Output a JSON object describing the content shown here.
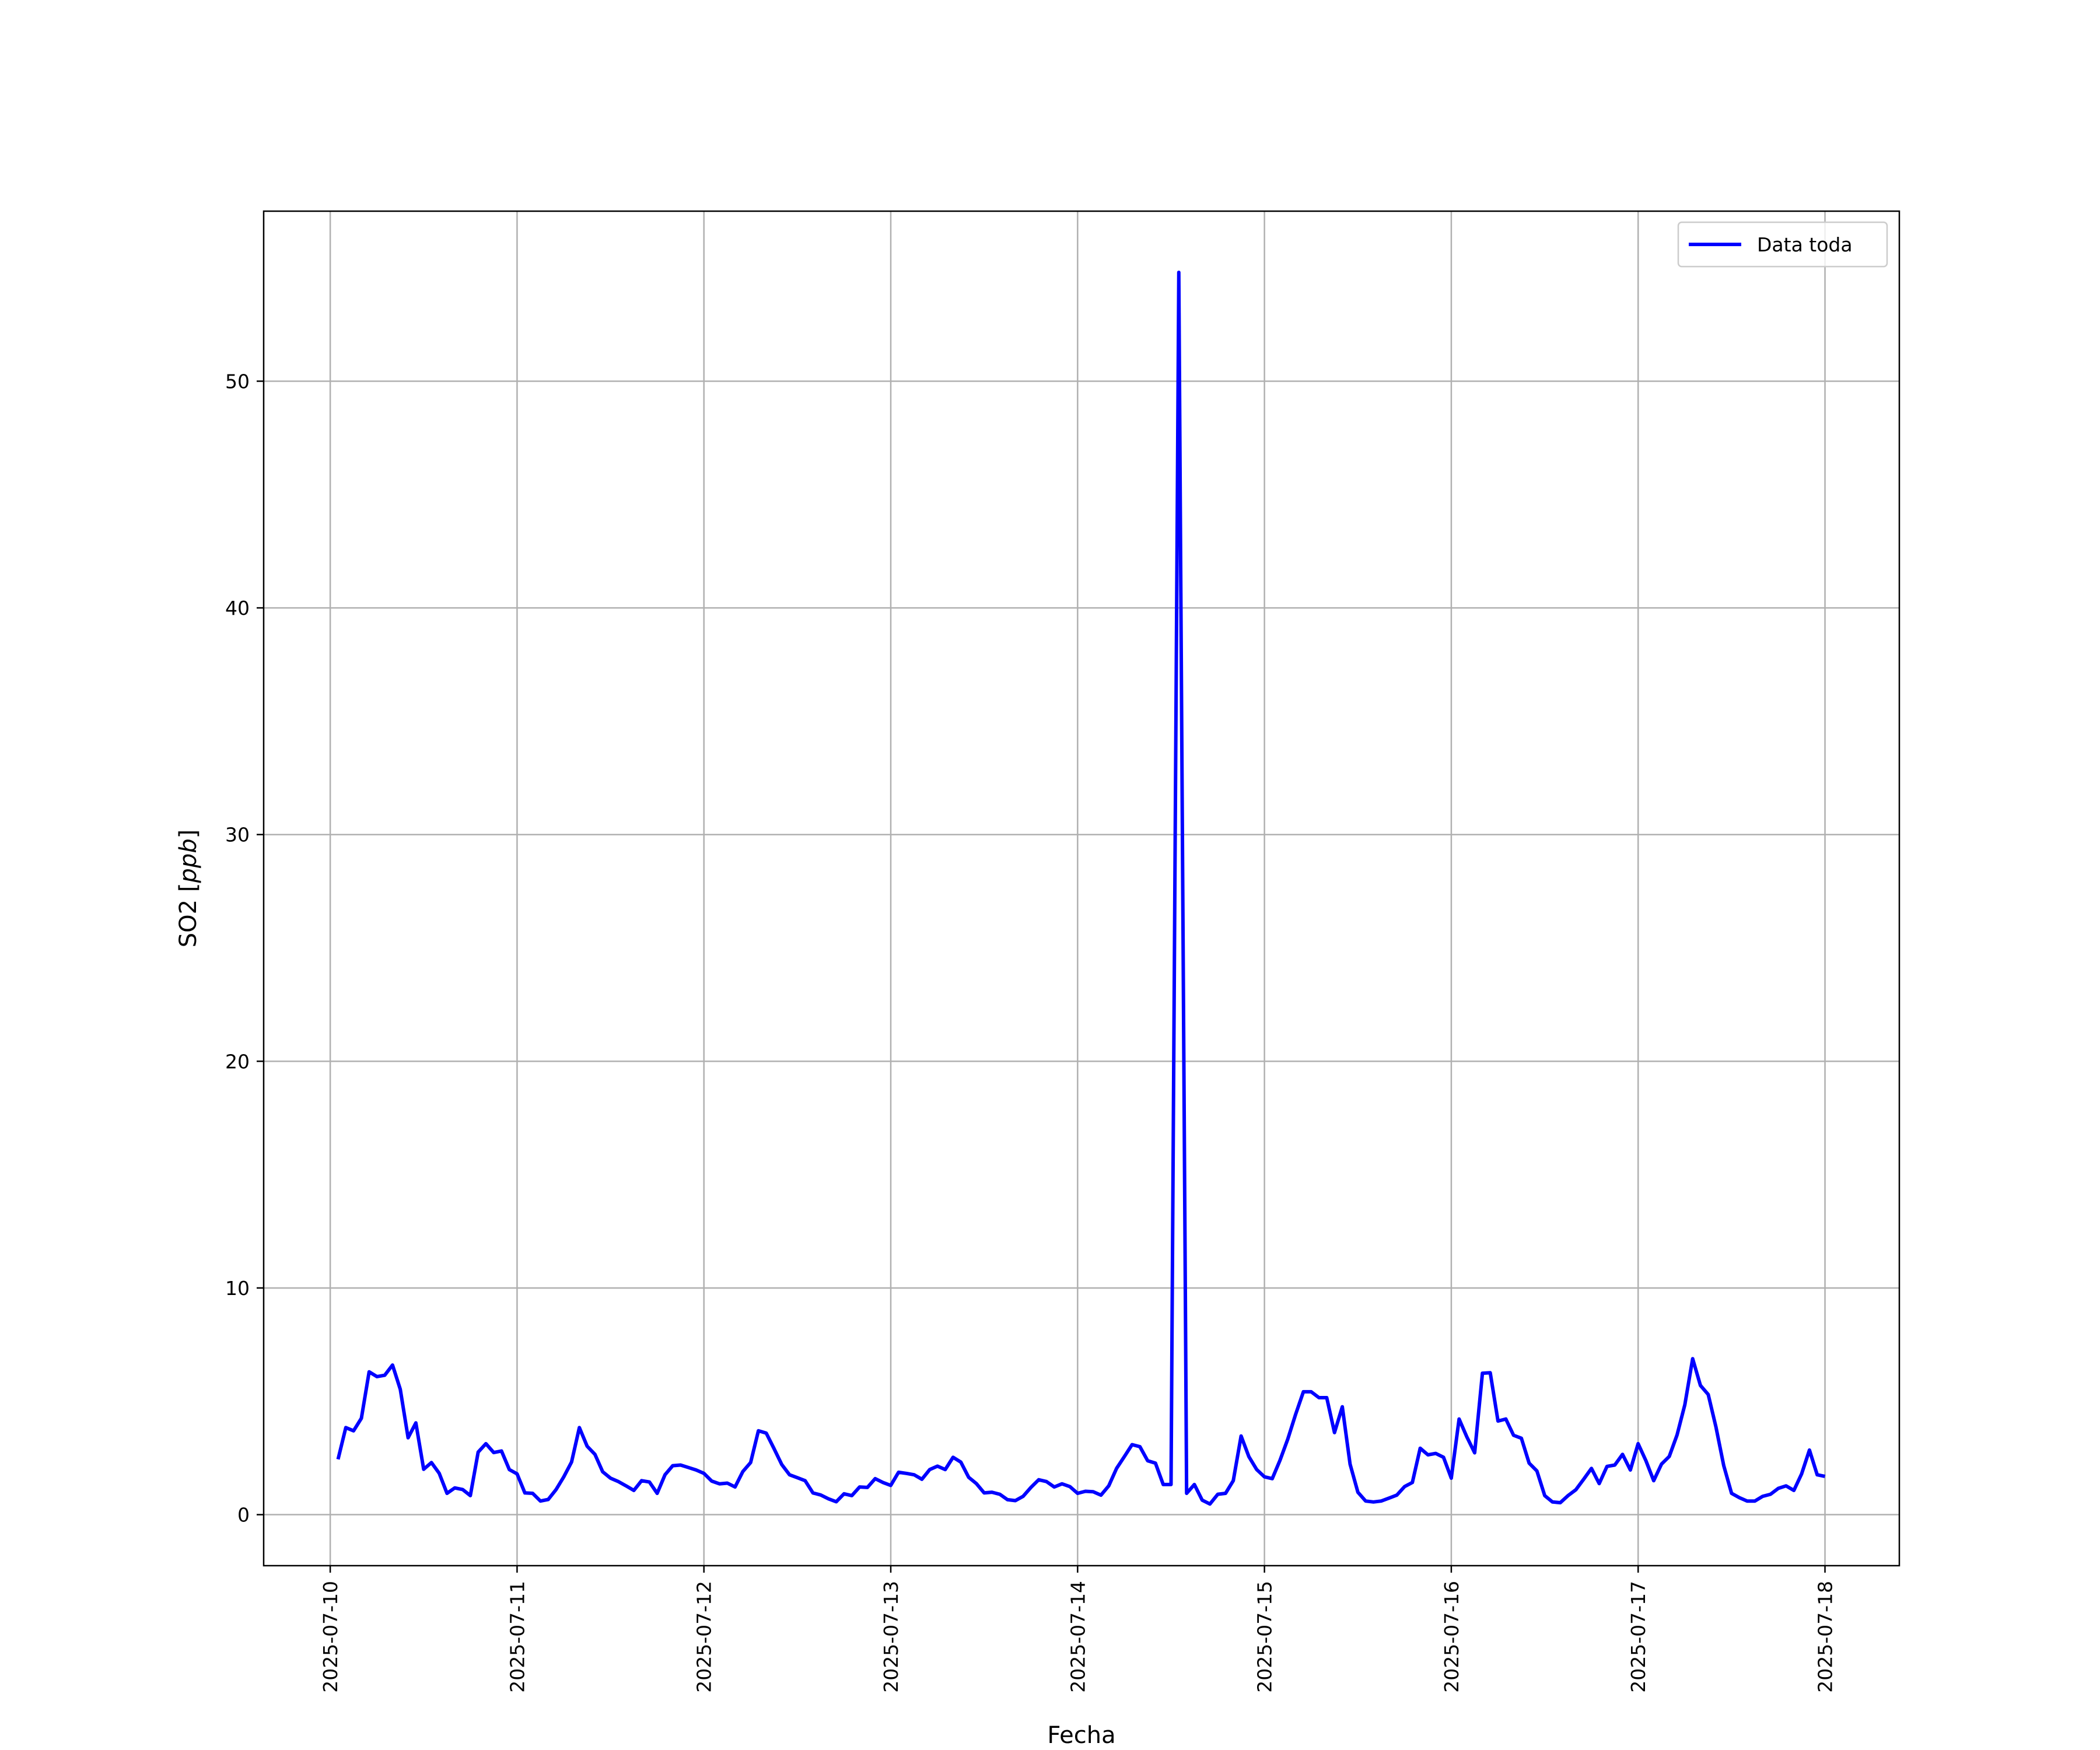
{
  "chart_data": {
    "type": "line",
    "title": "",
    "xlabel": "Fecha",
    "ylabel": "SO2 [ppb]",
    "ylabel_parts": {
      "text": "SO2 [",
      "italic": "ppb",
      "close": "]"
    },
    "xlim": [
      "2025-07-09 15:27",
      "2025-07-18 09:33"
    ],
    "ylim": [
      -2.25,
      57.5
    ],
    "grid": true,
    "legend_placement": "top-right",
    "x_ticks": [
      "2025-07-10",
      "2025-07-11",
      "2025-07-12",
      "2025-07-13",
      "2025-07-14",
      "2025-07-15",
      "2025-07-16",
      "2025-07-17",
      "2025-07-18"
    ],
    "y_ticks": [
      0,
      10,
      20,
      30,
      40,
      50
    ],
    "series": [
      {
        "name": "Data toda",
        "color": "#0000ff",
        "x_first": "2025-07-10 01:00",
        "x_interval": "1 hour",
        "values": [
          2.44,
          3.84,
          3.7,
          4.25,
          6.3,
          6.09,
          6.15,
          6.6,
          5.53,
          3.39,
          4.05,
          2.0,
          2.3,
          1.82,
          0.94,
          1.18,
          1.11,
          0.84,
          2.76,
          3.13,
          2.74,
          2.81,
          1.99,
          1.8,
          0.96,
          0.94,
          0.6,
          0.67,
          1.1,
          1.67,
          2.32,
          3.84,
          3.02,
          2.66,
          1.89,
          1.61,
          1.46,
          1.27,
          1.07,
          1.5,
          1.44,
          0.94,
          1.76,
          2.16,
          2.19,
          2.08,
          1.97,
          1.82,
          1.48,
          1.36,
          1.39,
          1.22,
          1.9,
          2.3,
          3.7,
          3.6,
          2.92,
          2.21,
          1.76,
          1.63,
          1.5,
          0.96,
          0.87,
          0.7,
          0.57,
          0.92,
          0.84,
          1.22,
          1.2,
          1.59,
          1.42,
          1.29,
          1.87,
          1.82,
          1.76,
          1.56,
          1.99,
          2.14,
          1.99,
          2.53,
          2.32,
          1.65,
          1.37,
          0.96,
          0.99,
          0.9,
          0.66,
          0.62,
          0.81,
          1.2,
          1.54,
          1.46,
          1.22,
          1.36,
          1.24,
          0.94,
          1.03,
          1.01,
          0.86,
          1.27,
          2.04,
          2.56,
          3.09,
          3.0,
          2.38,
          2.27,
          1.33,
          1.33,
          54.8,
          0.94,
          1.33,
          0.64,
          0.47,
          0.9,
          0.94,
          1.5,
          3.47,
          2.56,
          1.99,
          1.67,
          1.59,
          2.4,
          3.34,
          4.42,
          5.42,
          5.42,
          5.16,
          5.16,
          3.62,
          4.76,
          2.23,
          0.99,
          0.6,
          0.56,
          0.6,
          0.73,
          0.86,
          1.24,
          1.42,
          2.93,
          2.64,
          2.7,
          2.53,
          1.61,
          4.22,
          3.43,
          2.73,
          6.24,
          6.26,
          4.13,
          4.22,
          3.5,
          3.37,
          2.27,
          1.93,
          0.84,
          0.56,
          0.53,
          0.84,
          1.1,
          1.56,
          2.04,
          1.37,
          2.13,
          2.19,
          2.66,
          1.97,
          3.13,
          2.38,
          1.5,
          2.23,
          2.57,
          3.52,
          4.85,
          6.88,
          5.7,
          5.3,
          3.86,
          2.16,
          0.94,
          0.75,
          0.6,
          0.6,
          0.81,
          0.9,
          1.16,
          1.27,
          1.07,
          1.8,
          2.85,
          1.76,
          1.69
        ]
      }
    ]
  }
}
